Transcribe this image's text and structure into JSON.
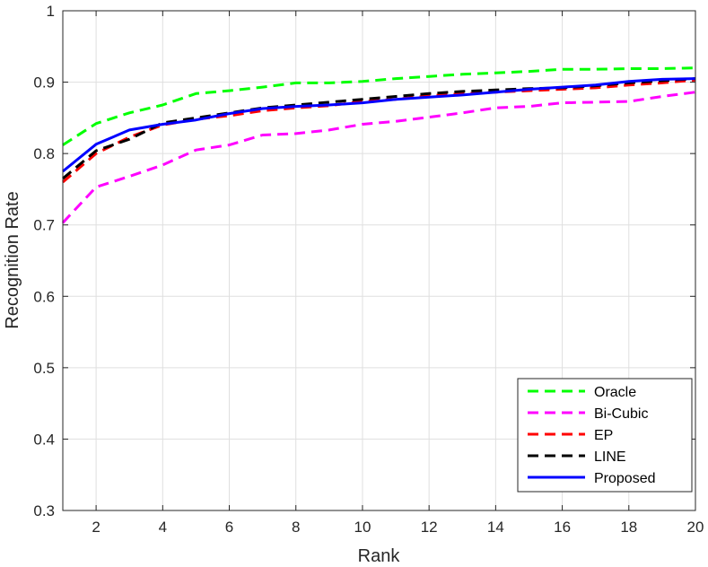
{
  "chart_data": {
    "type": "line",
    "xlabel": "Rank",
    "ylabel": "Recognition Rate",
    "xlim": [
      1,
      20
    ],
    "ylim": [
      0.3,
      1
    ],
    "xticks": [
      2,
      4,
      6,
      8,
      10,
      12,
      14,
      16,
      18,
      20
    ],
    "yticks": [
      0.3,
      0.4,
      0.5,
      0.6,
      0.7,
      0.8,
      0.9,
      1
    ],
    "ytick_labels": [
      "0.3",
      "0.4",
      "0.5",
      "0.6",
      "0.7",
      "0.8",
      "0.9",
      "1"
    ],
    "grid": true,
    "legend_position": "bottom-right",
    "x": [
      1,
      2,
      3,
      4,
      5,
      6,
      7,
      8,
      9,
      10,
      11,
      12,
      13,
      14,
      15,
      16,
      17,
      18,
      19,
      20
    ],
    "series": [
      {
        "name": "Oracle",
        "color": "#00ff00",
        "style": "dashed",
        "values": [
          0.812,
          0.842,
          0.857,
          0.868,
          0.884,
          0.888,
          0.893,
          0.899,
          0.899,
          0.901,
          0.905,
          0.908,
          0.911,
          0.913,
          0.915,
          0.918,
          0.918,
          0.919,
          0.919,
          0.92
        ]
      },
      {
        "name": "Bi-Cubic",
        "color": "#ff00ff",
        "style": "dashed",
        "values": [
          0.703,
          0.753,
          0.768,
          0.784,
          0.805,
          0.812,
          0.826,
          0.828,
          0.833,
          0.841,
          0.845,
          0.851,
          0.857,
          0.864,
          0.866,
          0.871,
          0.872,
          0.873,
          0.88,
          0.886
        ]
      },
      {
        "name": "EP",
        "color": "#ff0000",
        "style": "dashed",
        "values": [
          0.76,
          0.8,
          0.823,
          0.84,
          0.848,
          0.853,
          0.86,
          0.864,
          0.867,
          0.873,
          0.876,
          0.881,
          0.884,
          0.886,
          0.888,
          0.89,
          0.892,
          0.896,
          0.899,
          0.903
        ]
      },
      {
        "name": "LINE",
        "color": "#000000",
        "style": "dashed",
        "values": [
          0.765,
          0.804,
          0.82,
          0.843,
          0.85,
          0.857,
          0.864,
          0.868,
          0.872,
          0.876,
          0.88,
          0.884,
          0.887,
          0.889,
          0.891,
          0.892,
          0.895,
          0.899,
          0.902,
          0.905
        ]
      },
      {
        "name": "Proposed",
        "color": "#0000ff",
        "style": "solid",
        "values": [
          0.775,
          0.813,
          0.833,
          0.841,
          0.847,
          0.856,
          0.863,
          0.866,
          0.868,
          0.871,
          0.876,
          0.879,
          0.882,
          0.886,
          0.89,
          0.893,
          0.896,
          0.901,
          0.904,
          0.905
        ]
      }
    ]
  }
}
